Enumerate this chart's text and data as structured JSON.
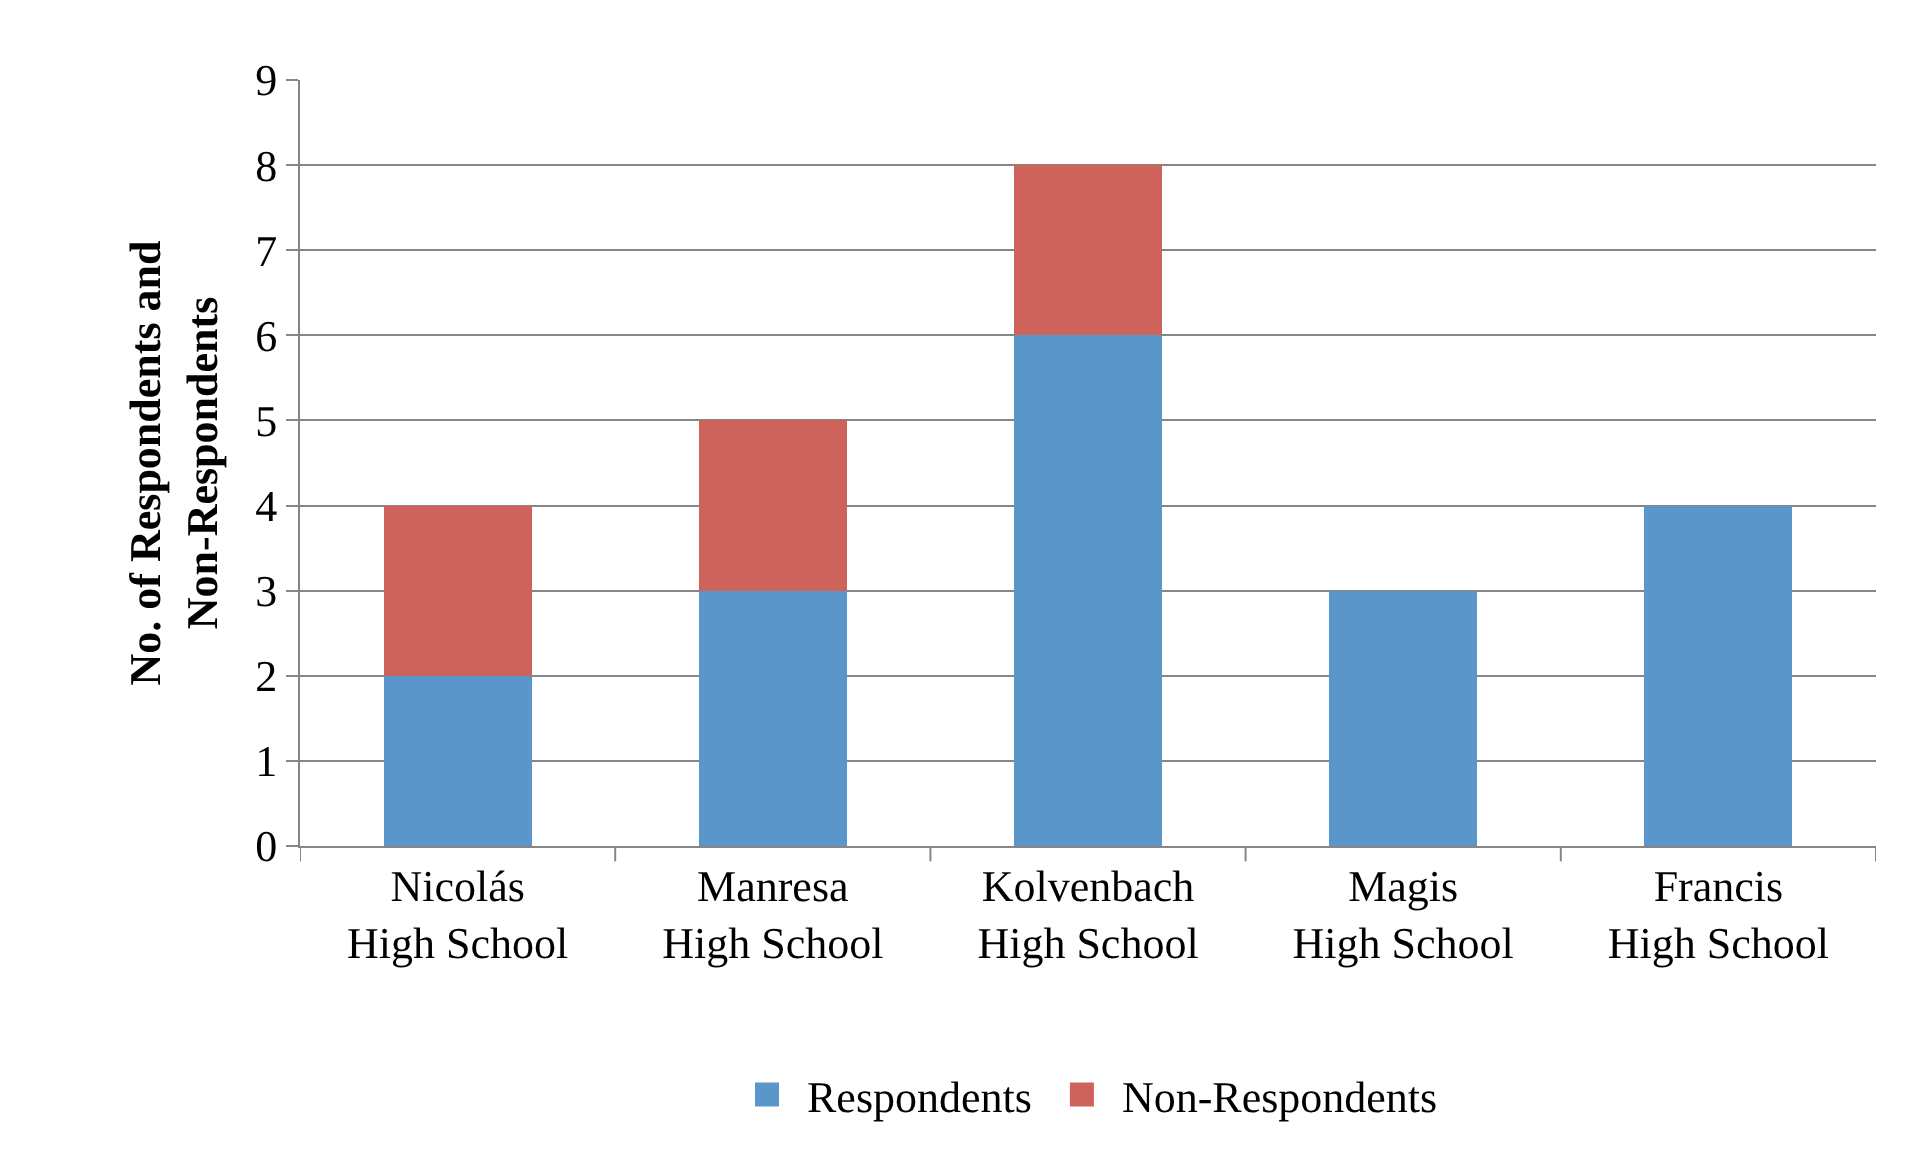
{
  "chart_data": {
    "type": "bar",
    "stacked": true,
    "ylabel": "No. of Respondents and Non-Respondents",
    "categories": [
      "Nicolás High School",
      "Manresa High School",
      "Kolvenbach High School",
      "Magis High School",
      "Francis High School"
    ],
    "series": [
      {
        "name": "Respondents",
        "color": "#5b96cb",
        "values": [
          2,
          3,
          6,
          3,
          4
        ]
      },
      {
        "name": "Non-Respondents",
        "color": "#cd635a",
        "values": [
          2,
          2,
          2,
          0,
          0
        ]
      }
    ],
    "ylim": [
      0,
      9
    ],
    "yticks": [
      0,
      1,
      2,
      3,
      4,
      5,
      6,
      7,
      8,
      9
    ],
    "grid": "y",
    "legend": "bottom"
  }
}
